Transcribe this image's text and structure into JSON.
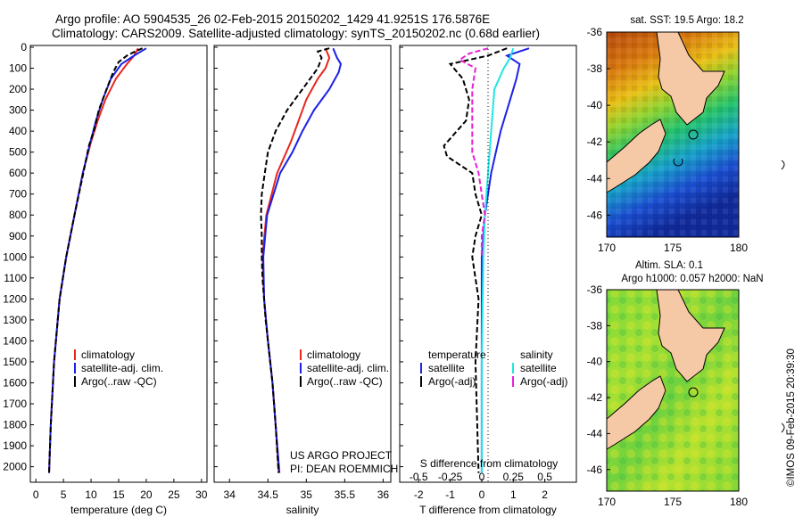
{
  "header": {
    "line1": "Argo profile: AO 5904535_26 02-Feb-2015 20150202_1429 41.9251S 176.5876E",
    "line2": "Climatology: CARS2009. Satellite-adjusted climatology: synTS_20150202.nc (0.68d earlier)"
  },
  "colors": {
    "climatology": "#e8271e",
    "satellite": "#1b21e6",
    "argo": "#000000",
    "sat_sal": "#1fe6e6",
    "argo_sal": "#e81fd8"
  },
  "chart_data": [
    {
      "type": "line",
      "panel": "temperature",
      "xlabel": "temperature (deg C)",
      "ylim": [
        2050,
        0
      ],
      "xlim": [
        -1,
        31
      ],
      "xticks": [
        0,
        5,
        10,
        15,
        20,
        25,
        30
      ],
      "yticks": [
        0,
        100,
        200,
        300,
        400,
        500,
        600,
        700,
        800,
        900,
        1000,
        1100,
        1200,
        1300,
        1400,
        1500,
        1600,
        1700,
        1800,
        1900,
        2000
      ],
      "legend": [
        "climatology",
        "satellite-adj. clim.",
        "Argo(..raw -QC)"
      ],
      "series": [
        {
          "name": "climatology",
          "style": "solid",
          "depth": [
            5,
            40,
            80,
            150,
            250,
            350,
            450,
            600,
            800,
            1000,
            1200,
            1500,
            1800,
            2030
          ],
          "values": [
            18.5,
            17.8,
            16.5,
            14.5,
            12.6,
            11.2,
            10.0,
            8.5,
            7.0,
            5.5,
            4.3,
            3.3,
            2.7,
            2.4
          ]
        },
        {
          "name": "satellite-adj. clim.",
          "style": "solid",
          "depth": [
            5,
            40,
            80,
            150,
            250,
            350,
            450,
            600,
            800,
            1000,
            1200,
            1500,
            1800,
            2030
          ],
          "values": [
            20.0,
            17.8,
            15.5,
            13.6,
            12.1,
            10.9,
            9.9,
            8.5,
            7.0,
            5.5,
            4.3,
            3.3,
            2.7,
            2.4
          ]
        },
        {
          "name": "Argo(..raw -QC)",
          "style": "dashed",
          "depth": [
            5,
            20,
            40,
            70,
            120,
            200,
            300,
            400,
            470,
            600,
            800,
            1000,
            1200,
            1500,
            1800,
            2030
          ],
          "values": [
            19.3,
            18.0,
            16.5,
            15.0,
            14.0,
            12.8,
            11.4,
            10.5,
            9.6,
            8.6,
            7.0,
            5.5,
            4.3,
            3.3,
            2.7,
            2.4
          ]
        }
      ]
    },
    {
      "type": "line",
      "panel": "salinity",
      "xlabel": "salinity",
      "ylim": [
        2050,
        0
      ],
      "xlim": [
        33.8,
        36.1
      ],
      "xticks": [
        34,
        34.5,
        35,
        35.5,
        36
      ],
      "legend": [
        "climatology",
        "satellite-adj. clim.",
        "Argo(..raw -QC)"
      ],
      "annotation": [
        "US ARGO PROJECT",
        "PI: DEAN ROEMMICH"
      ],
      "series": [
        {
          "name": "climatology",
          "style": "solid",
          "depth": [
            5,
            50,
            100,
            150,
            250,
            350,
            450,
            600,
            800,
            1000,
            1200,
            1400,
            1600,
            1800,
            2030
          ],
          "values": [
            35.25,
            35.3,
            35.25,
            35.15,
            35.0,
            34.9,
            34.8,
            34.62,
            34.48,
            34.43,
            34.45,
            34.5,
            34.56,
            34.6,
            34.64
          ]
        },
        {
          "name": "satellite-adj. clim.",
          "style": "solid",
          "depth": [
            5,
            50,
            80,
            120,
            200,
            300,
            400,
            500,
            600,
            800,
            1000,
            1200,
            1400,
            1600,
            1800,
            2030
          ],
          "values": [
            35.35,
            35.4,
            35.45,
            35.42,
            35.3,
            35.1,
            34.95,
            34.82,
            34.66,
            34.49,
            34.44,
            34.45,
            34.5,
            34.56,
            34.6,
            34.65
          ]
        },
        {
          "name": "Argo(..raw -QC)",
          "style": "dashed",
          "depth": [
            5,
            20,
            50,
            100,
            150,
            200,
            300,
            400,
            500,
            600,
            700,
            800,
            900,
            1000,
            1100,
            1200,
            1300,
            1400,
            1600,
            1800,
            2030
          ],
          "values": [
            35.3,
            35.15,
            35.2,
            35.15,
            35.05,
            34.95,
            34.75,
            34.6,
            34.5,
            34.46,
            34.42,
            34.41,
            34.42,
            34.42,
            34.43,
            34.45,
            34.47,
            34.5,
            34.56,
            34.6,
            34.64
          ]
        }
      ]
    },
    {
      "type": "line",
      "panel": "difference",
      "xlabel": "T difference from climatology",
      "xlabel2": "S difference from climatology",
      "xticks": [
        -2,
        -1,
        0,
        1,
        2
      ],
      "xticks2": [
        "-0.5",
        "-0.25",
        "0",
        "0.25",
        "0.5"
      ],
      "xlim": [
        -2.6,
        3.0
      ],
      "ylim": [
        2050,
        0
      ],
      "legend_headers": [
        "temperature",
        "salinity"
      ],
      "legend": [
        "satellite",
        "Argo(-adj)",
        "satellite",
        "Argo(-adj)"
      ],
      "series": [
        {
          "name": "temperature satellite",
          "style": "solid",
          "depth": [
            5,
            40,
            80,
            150,
            250,
            400,
            600,
            800,
            1000,
            1500,
            2030
          ],
          "values": [
            1.5,
            0.8,
            1.2,
            1.1,
            0.9,
            0.6,
            0.3,
            0.1,
            0.0,
            0.0,
            0.0
          ]
        },
        {
          "name": "temperature Argo(-adj)",
          "style": "dashed",
          "depth": [
            5,
            40,
            80,
            150,
            250,
            350,
            470,
            520,
            600,
            700,
            800,
            900,
            1000,
            1200,
            1500,
            2030
          ],
          "values": [
            0.8,
            0.2,
            -1.0,
            -0.6,
            -0.4,
            -0.5,
            -1.2,
            -1.1,
            -0.3,
            -0.2,
            0.0,
            -0.2,
            -0.3,
            -0.1,
            -0.2,
            -0.1
          ]
        },
        {
          "name": "salinity satellite",
          "style": "solid",
          "depth": [
            5,
            50,
            100,
            200,
            400,
            600,
            800,
            1000,
            1500,
            2030
          ],
          "values": [
            1.0,
            0.9,
            0.7,
            0.4,
            0.3,
            0.2,
            0.1,
            0.05,
            0.0,
            0.0
          ]
        },
        {
          "name": "salinity Argo(-adj)",
          "style": "dashed",
          "depth": [
            5,
            30,
            60,
            100,
            200,
            350,
            500,
            600,
            700,
            800,
            900,
            1000
          ],
          "values": [
            0.2,
            -0.4,
            -0.7,
            -0.2,
            -0.3,
            -0.3,
            -0.3,
            -0.1,
            0.0,
            0.1,
            0.0,
            0.0
          ]
        }
      ]
    },
    {
      "type": "heatmap",
      "panel": "sst_map",
      "title": "sat. SST: 19.5 Argo: 18.2",
      "xticks": [
        170,
        175,
        180
      ],
      "yticks": [
        -36,
        -38,
        -40,
        -42,
        -44,
        -46
      ]
    },
    {
      "type": "heatmap",
      "panel": "sla_map",
      "title1": "Altim. SLA: 0.1",
      "title2": "Argo h1000: 0.057 h2000: NaN",
      "xticks": [
        170,
        175,
        180
      ],
      "yticks": [
        -36,
        -38,
        -40,
        -42,
        -44,
        -46
      ]
    }
  ],
  "side_text": "©IMOS 09-Feb-2015 20:39:30"
}
